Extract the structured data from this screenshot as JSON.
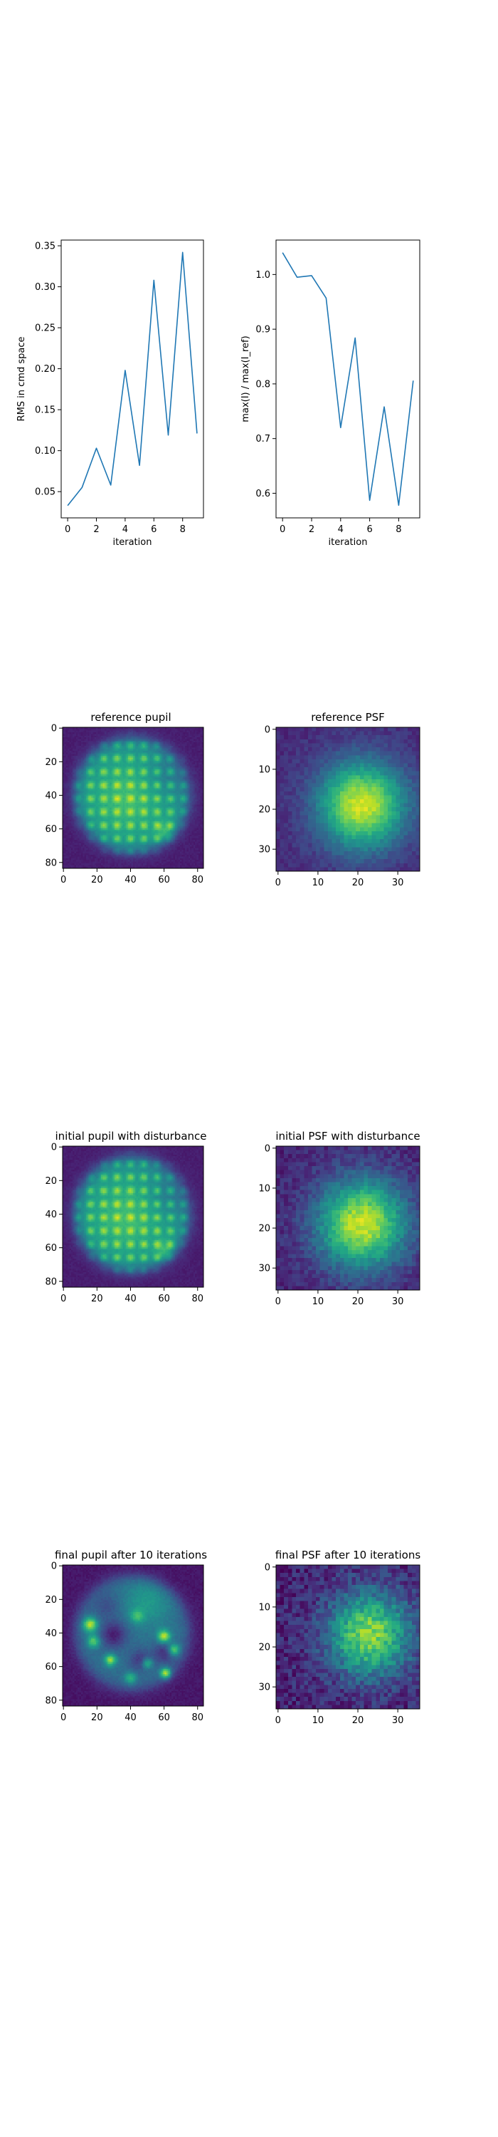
{
  "chart_data": [
    {
      "type": "line",
      "title": "",
      "xlabel": "iteration",
      "ylabel": "RMS in cmd space",
      "x": [
        0,
        1,
        2,
        3,
        4,
        5,
        6,
        7,
        8,
        9
      ],
      "series": [
        {
          "values": [
            0.033,
            0.055,
            0.103,
            0.058,
            0.198,
            0.082,
            0.308,
            0.119,
            0.342,
            0.121
          ]
        }
      ],
      "xlim": [
        -0.45,
        9.45
      ],
      "ylim": [
        0.018,
        0.357
      ],
      "xticks": [
        0,
        2,
        4,
        6,
        8
      ],
      "xtick_labels": [
        "0",
        "2",
        "4",
        "6",
        "8"
      ],
      "yticks": [
        0.05,
        0.1,
        0.15,
        0.2,
        0.25,
        0.3,
        0.35
      ],
      "ytick_labels": [
        "0.05",
        "0.10",
        "0.15",
        "0.20",
        "0.25",
        "0.30",
        "0.35"
      ],
      "color": "#1f77b4",
      "grid": false
    },
    {
      "type": "line",
      "title": "",
      "xlabel": "iteration",
      "ylabel": "max(I) / max(I_ref)",
      "x": [
        0,
        1,
        2,
        3,
        4,
        5,
        6,
        7,
        8,
        9
      ],
      "series": [
        {
          "values": [
            1.04,
            0.995,
            0.998,
            0.957,
            0.72,
            0.884,
            0.587,
            0.758,
            0.578,
            0.806
          ]
        }
      ],
      "xlim": [
        -0.45,
        9.45
      ],
      "ylim": [
        0.555,
        1.063
      ],
      "xticks": [
        0,
        2,
        4,
        6,
        8
      ],
      "xtick_labels": [
        "0",
        "2",
        "4",
        "6",
        "8"
      ],
      "yticks": [
        0.6,
        0.7,
        0.8,
        0.9,
        1.0
      ],
      "ytick_labels": [
        "0.6",
        "0.7",
        "0.8",
        "0.9",
        "1.0"
      ],
      "color": "#1f77b4",
      "grid": false
    },
    {
      "type": "heatmap",
      "title": "reference pupil",
      "kind": "pupil",
      "variant": "reference",
      "size": 84,
      "xticks": [
        0,
        20,
        40,
        60,
        80
      ],
      "yticks": [
        0,
        20,
        40,
        60,
        80
      ],
      "colormap": "viridis"
    },
    {
      "type": "heatmap",
      "title": "reference PSF",
      "kind": "psf",
      "variant": "reference",
      "size": 36,
      "xticks": [
        0,
        10,
        20,
        30
      ],
      "yticks": [
        0,
        10,
        20,
        30
      ],
      "colormap": "viridis"
    },
    {
      "type": "heatmap",
      "title": "initial pupil with disturbance",
      "kind": "pupil",
      "variant": "initial",
      "size": 84,
      "xticks": [
        0,
        20,
        40,
        60,
        80
      ],
      "yticks": [
        0,
        20,
        40,
        60,
        80
      ],
      "colormap": "viridis"
    },
    {
      "type": "heatmap",
      "title": "initial PSF with disturbance",
      "kind": "psf",
      "variant": "initial",
      "size": 36,
      "xticks": [
        0,
        10,
        20,
        30
      ],
      "yticks": [
        0,
        10,
        20,
        30
      ],
      "colormap": "viridis"
    },
    {
      "type": "heatmap",
      "title": "final pupil after 10 iterations",
      "kind": "pupil",
      "variant": "final",
      "size": 84,
      "xticks": [
        0,
        20,
        40,
        60,
        80
      ],
      "yticks": [
        0,
        20,
        40,
        60,
        80
      ],
      "colormap": "viridis"
    },
    {
      "type": "heatmap",
      "title": "final PSF after 10 iterations",
      "kind": "psf",
      "variant": "final",
      "size": 36,
      "xticks": [
        0,
        10,
        20,
        30
      ],
      "yticks": [
        0,
        10,
        20,
        30
      ],
      "colormap": "viridis"
    }
  ]
}
